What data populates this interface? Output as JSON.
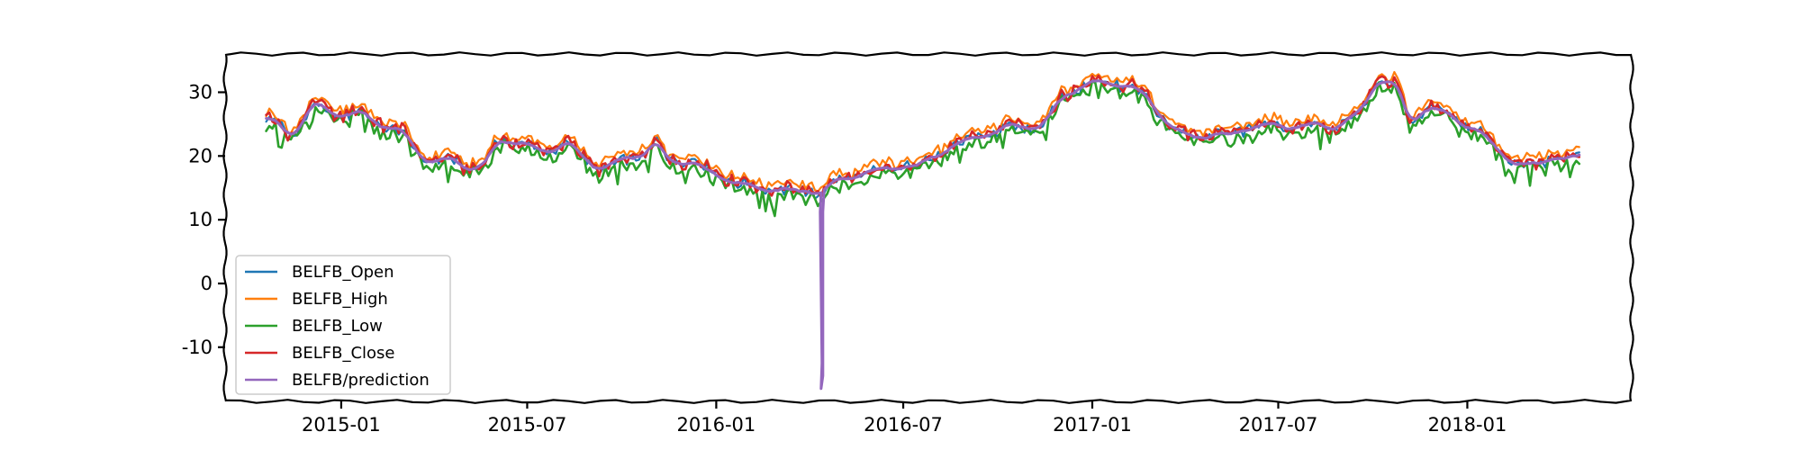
{
  "chart_data": {
    "type": "line",
    "title": "",
    "xlabel": "",
    "ylabel": "",
    "xlim": [
      "2014-09-10",
      "2018-06-10"
    ],
    "ylim": [
      -18.5,
      36
    ],
    "x_ticks": [
      "2015-01",
      "2015-07",
      "2016-01",
      "2016-07",
      "2017-01",
      "2017-07",
      "2018-01"
    ],
    "y_ticks": [
      30,
      20,
      10,
      0,
      -10
    ],
    "y_tick_labels": [
      "30",
      "20",
      "10",
      "0",
      "-10"
    ],
    "grid": false,
    "legend_position": "lower-left",
    "series": [
      {
        "name": "BELFB_Open",
        "color": "#1f77b4"
      },
      {
        "name": "BELFB_High",
        "color": "#ff7f0e"
      },
      {
        "name": "BELFB_Low",
        "color": "#2ca02c"
      },
      {
        "name": "BELFB_Close",
        "color": "#d62728"
      },
      {
        "name": "BELFB/prediction",
        "color": "#9467bd"
      }
    ],
    "base_points": [
      [
        "2014-10-20",
        26.0
      ],
      [
        "2014-11-01",
        25.0
      ],
      [
        "2014-11-10",
        22.8
      ],
      [
        "2014-11-25",
        25.5
      ],
      [
        "2014-12-05",
        28.5
      ],
      [
        "2014-12-20",
        26.5
      ],
      [
        "2015-01-05",
        26.5
      ],
      [
        "2015-01-20",
        27.0
      ],
      [
        "2015-02-05",
        25.0
      ],
      [
        "2015-03-01",
        24.0
      ],
      [
        "2015-03-20",
        19.5
      ],
      [
        "2015-04-20",
        19.3
      ],
      [
        "2015-05-01",
        18.0
      ],
      [
        "2015-05-20",
        18.5
      ],
      [
        "2015-06-01",
        22.0
      ],
      [
        "2015-06-20",
        22.5
      ],
      [
        "2015-07-10",
        21.0
      ],
      [
        "2015-07-25",
        20.5
      ],
      [
        "2015-08-10",
        22.5
      ],
      [
        "2015-08-25",
        19.5
      ],
      [
        "2015-09-05",
        18.0
      ],
      [
        "2015-10-01",
        19.0
      ],
      [
        "2015-10-25",
        20.5
      ],
      [
        "2015-11-05",
        22.5
      ],
      [
        "2015-11-15",
        19.0
      ],
      [
        "2015-12-10",
        19.5
      ],
      [
        "2015-12-25",
        17.5
      ],
      [
        "2016-01-20",
        16.0
      ],
      [
        "2016-02-10",
        15.0
      ],
      [
        "2016-03-15",
        14.5
      ],
      [
        "2016-04-10",
        14.3
      ],
      [
        "2016-04-20",
        15.5
      ],
      [
        "2016-05-20",
        17.0
      ],
      [
        "2016-06-20",
        18.0
      ],
      [
        "2016-07-20",
        19.0
      ],
      [
        "2016-08-15",
        21.0
      ],
      [
        "2016-09-10",
        23.0
      ],
      [
        "2016-10-15",
        24.5
      ],
      [
        "2016-11-15",
        25.0
      ],
      [
        "2016-12-01",
        29.0
      ],
      [
        "2016-12-15",
        30.5
      ],
      [
        "2017-01-10",
        32.0
      ],
      [
        "2017-02-05",
        31.0
      ],
      [
        "2017-02-25",
        29.0
      ],
      [
        "2017-03-15",
        25.0
      ],
      [
        "2017-04-05",
        23.0
      ],
      [
        "2017-04-25",
        23.0
      ],
      [
        "2017-05-20",
        23.5
      ],
      [
        "2017-06-15",
        25.0
      ],
      [
        "2017-07-10",
        24.5
      ],
      [
        "2017-08-05",
        25.0
      ],
      [
        "2017-08-25",
        24.5
      ],
      [
        "2017-09-15",
        26.0
      ],
      [
        "2017-10-05",
        32.0
      ],
      [
        "2017-10-25",
        31.0
      ],
      [
        "2017-11-05",
        25.0
      ],
      [
        "2017-11-25",
        27.5
      ],
      [
        "2017-12-15",
        26.5
      ],
      [
        "2018-01-05",
        24.5
      ],
      [
        "2018-02-01",
        21.0
      ],
      [
        "2018-02-20",
        18.0
      ],
      [
        "2018-03-20",
        19.5
      ],
      [
        "2018-04-10",
        19.5
      ],
      [
        "2018-04-20",
        19.8
      ]
    ],
    "prediction_dip": {
      "date": "2016-04-12",
      "min": -16.5
    }
  }
}
